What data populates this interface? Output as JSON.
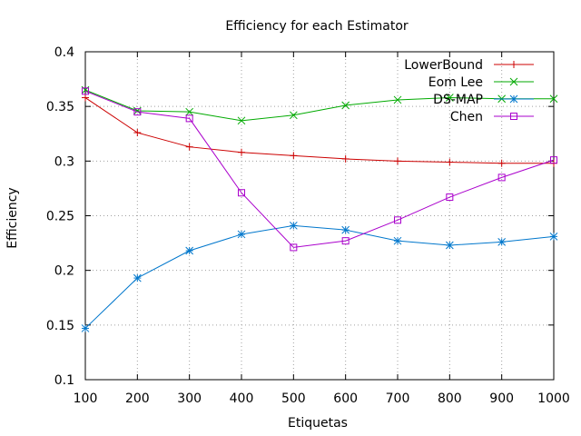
{
  "chart_data": {
    "type": "line",
    "title": "Efficiency for each Estimator",
    "xlabel": "Etiquetas",
    "ylabel": "Efficiency",
    "x": [
      100,
      200,
      300,
      400,
      500,
      600,
      700,
      800,
      900,
      1000
    ],
    "xlim": [
      100,
      1000
    ],
    "ylim": [
      0.1,
      0.4
    ],
    "xticks": [
      100,
      200,
      300,
      400,
      500,
      600,
      700,
      800,
      900,
      1000
    ],
    "yticks": [
      0.1,
      0.15,
      0.2,
      0.25,
      0.3,
      0.35,
      0.4
    ],
    "xtick_labels": [
      "100",
      "200",
      "300",
      "400",
      "500",
      "600",
      "700",
      "800",
      "900",
      "1000"
    ],
    "ytick_labels": [
      "0.1",
      "0.15",
      "0.2",
      "0.25",
      "0.3",
      "0.35",
      "0.4"
    ],
    "grid": true,
    "legend_position": "top-right",
    "series": [
      {
        "name": "LowerBound",
        "color": "#cc0000",
        "marker": "plus",
        "values": [
          0.358,
          0.326,
          0.313,
          0.308,
          0.305,
          0.302,
          0.3,
          0.299,
          0.298,
          0.298
        ]
      },
      {
        "name": "Eom Lee",
        "color": "#00aa00",
        "marker": "cross",
        "values": [
          0.365,
          0.346,
          0.345,
          0.337,
          0.342,
          0.351,
          0.356,
          0.358,
          0.357,
          0.357
        ]
      },
      {
        "name": "DS-MAP",
        "color": "#0077cc",
        "marker": "star",
        "values": [
          0.147,
          0.193,
          0.218,
          0.233,
          0.241,
          0.237,
          0.227,
          0.223,
          0.226,
          0.231
        ]
      },
      {
        "name": "Chen",
        "color": "#aa00cc",
        "marker": "square",
        "values": [
          0.364,
          0.345,
          0.339,
          0.271,
          0.221,
          0.227,
          0.246,
          0.267,
          0.285,
          0.301
        ]
      }
    ]
  }
}
